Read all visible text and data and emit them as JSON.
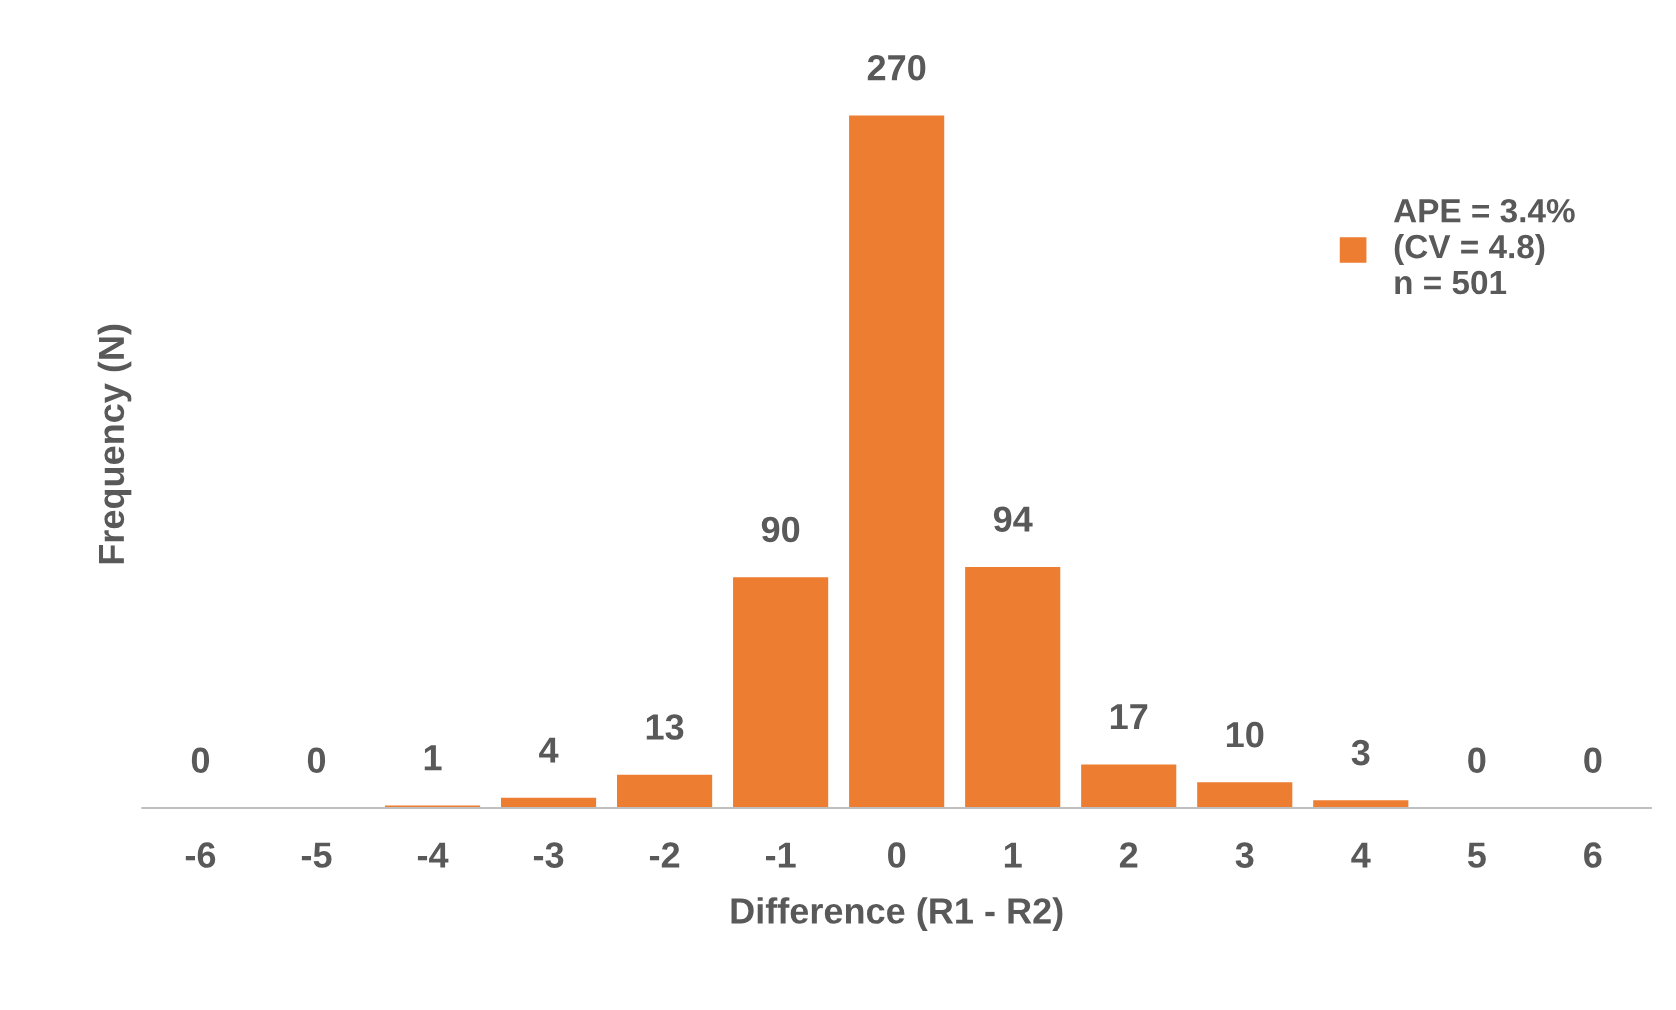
{
  "chart_data": {
    "type": "bar",
    "xlabel": "Difference (R1 - R2)",
    "ylabel": "Frequency (N)",
    "categories": [
      "-6",
      "-5",
      "-4",
      "-3",
      "-2",
      "-1",
      "0",
      "1",
      "2",
      "3",
      "4",
      "5",
      "6"
    ],
    "series": [
      {
        "name": "APE = 3.4%\n(CV = 4.8)\nn = 501",
        "color": "#ed7d31",
        "values": [
          0,
          0,
          1,
          4,
          13,
          90,
          270,
          94,
          17,
          10,
          3,
          0,
          0
        ]
      }
    ],
    "data_labels": true,
    "legend": "top right",
    "grid": false
  }
}
